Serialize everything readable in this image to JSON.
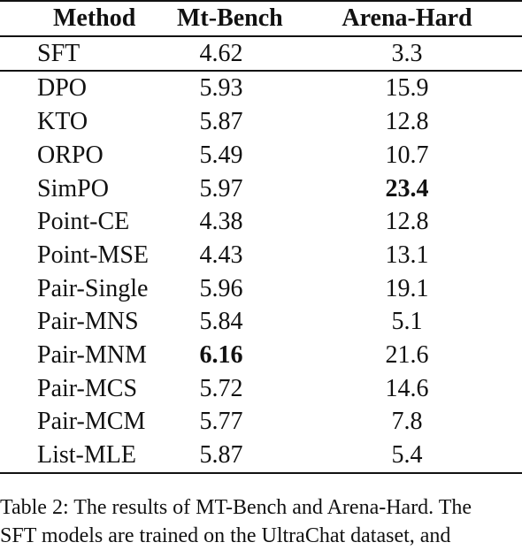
{
  "table": {
    "headers": [
      "Method",
      "Mt-Bench",
      "Arena-Hard"
    ],
    "rows": [
      {
        "method": "SFT",
        "mt_bench": "4.62",
        "arena_hard": "3.3",
        "bold_mt": false,
        "bold_ah": false
      },
      {
        "method": "DPO",
        "mt_bench": "5.93",
        "arena_hard": "15.9",
        "bold_mt": false,
        "bold_ah": false
      },
      {
        "method": "KTO",
        "mt_bench": "5.87",
        "arena_hard": "12.8",
        "bold_mt": false,
        "bold_ah": false
      },
      {
        "method": "ORPO",
        "mt_bench": "5.49",
        "arena_hard": "10.7",
        "bold_mt": false,
        "bold_ah": false
      },
      {
        "method": "SimPO",
        "mt_bench": "5.97",
        "arena_hard": "23.4",
        "bold_mt": false,
        "bold_ah": true
      },
      {
        "method": "Point-CE",
        "mt_bench": "4.38",
        "arena_hard": "12.8",
        "bold_mt": false,
        "bold_ah": false
      },
      {
        "method": "Point-MSE",
        "mt_bench": "4.43",
        "arena_hard": "13.1",
        "bold_mt": false,
        "bold_ah": false
      },
      {
        "method": "Pair-Single",
        "mt_bench": "5.96",
        "arena_hard": "19.1",
        "bold_mt": false,
        "bold_ah": false
      },
      {
        "method": "Pair-MNS",
        "mt_bench": "5.84",
        "arena_hard": "5.1",
        "bold_mt": false,
        "bold_ah": false
      },
      {
        "method": "Pair-MNM",
        "mt_bench": "6.16",
        "arena_hard": "21.6",
        "bold_mt": true,
        "bold_ah": false
      },
      {
        "method": "Pair-MCS",
        "mt_bench": "5.72",
        "arena_hard": "14.6",
        "bold_mt": false,
        "bold_ah": false
      },
      {
        "method": "Pair-MCM",
        "mt_bench": "5.77",
        "arena_hard": "7.8",
        "bold_mt": false,
        "bold_ah": false
      },
      {
        "method": "List-MLE",
        "mt_bench": "5.87",
        "arena_hard": "5.4",
        "bold_mt": false,
        "bold_ah": false
      }
    ]
  },
  "caption": {
    "line1": "Table 2: The results of MT-Bench and Arena-Hard. The",
    "line2": "SFT models are trained on the UltraChat dataset, and"
  }
}
